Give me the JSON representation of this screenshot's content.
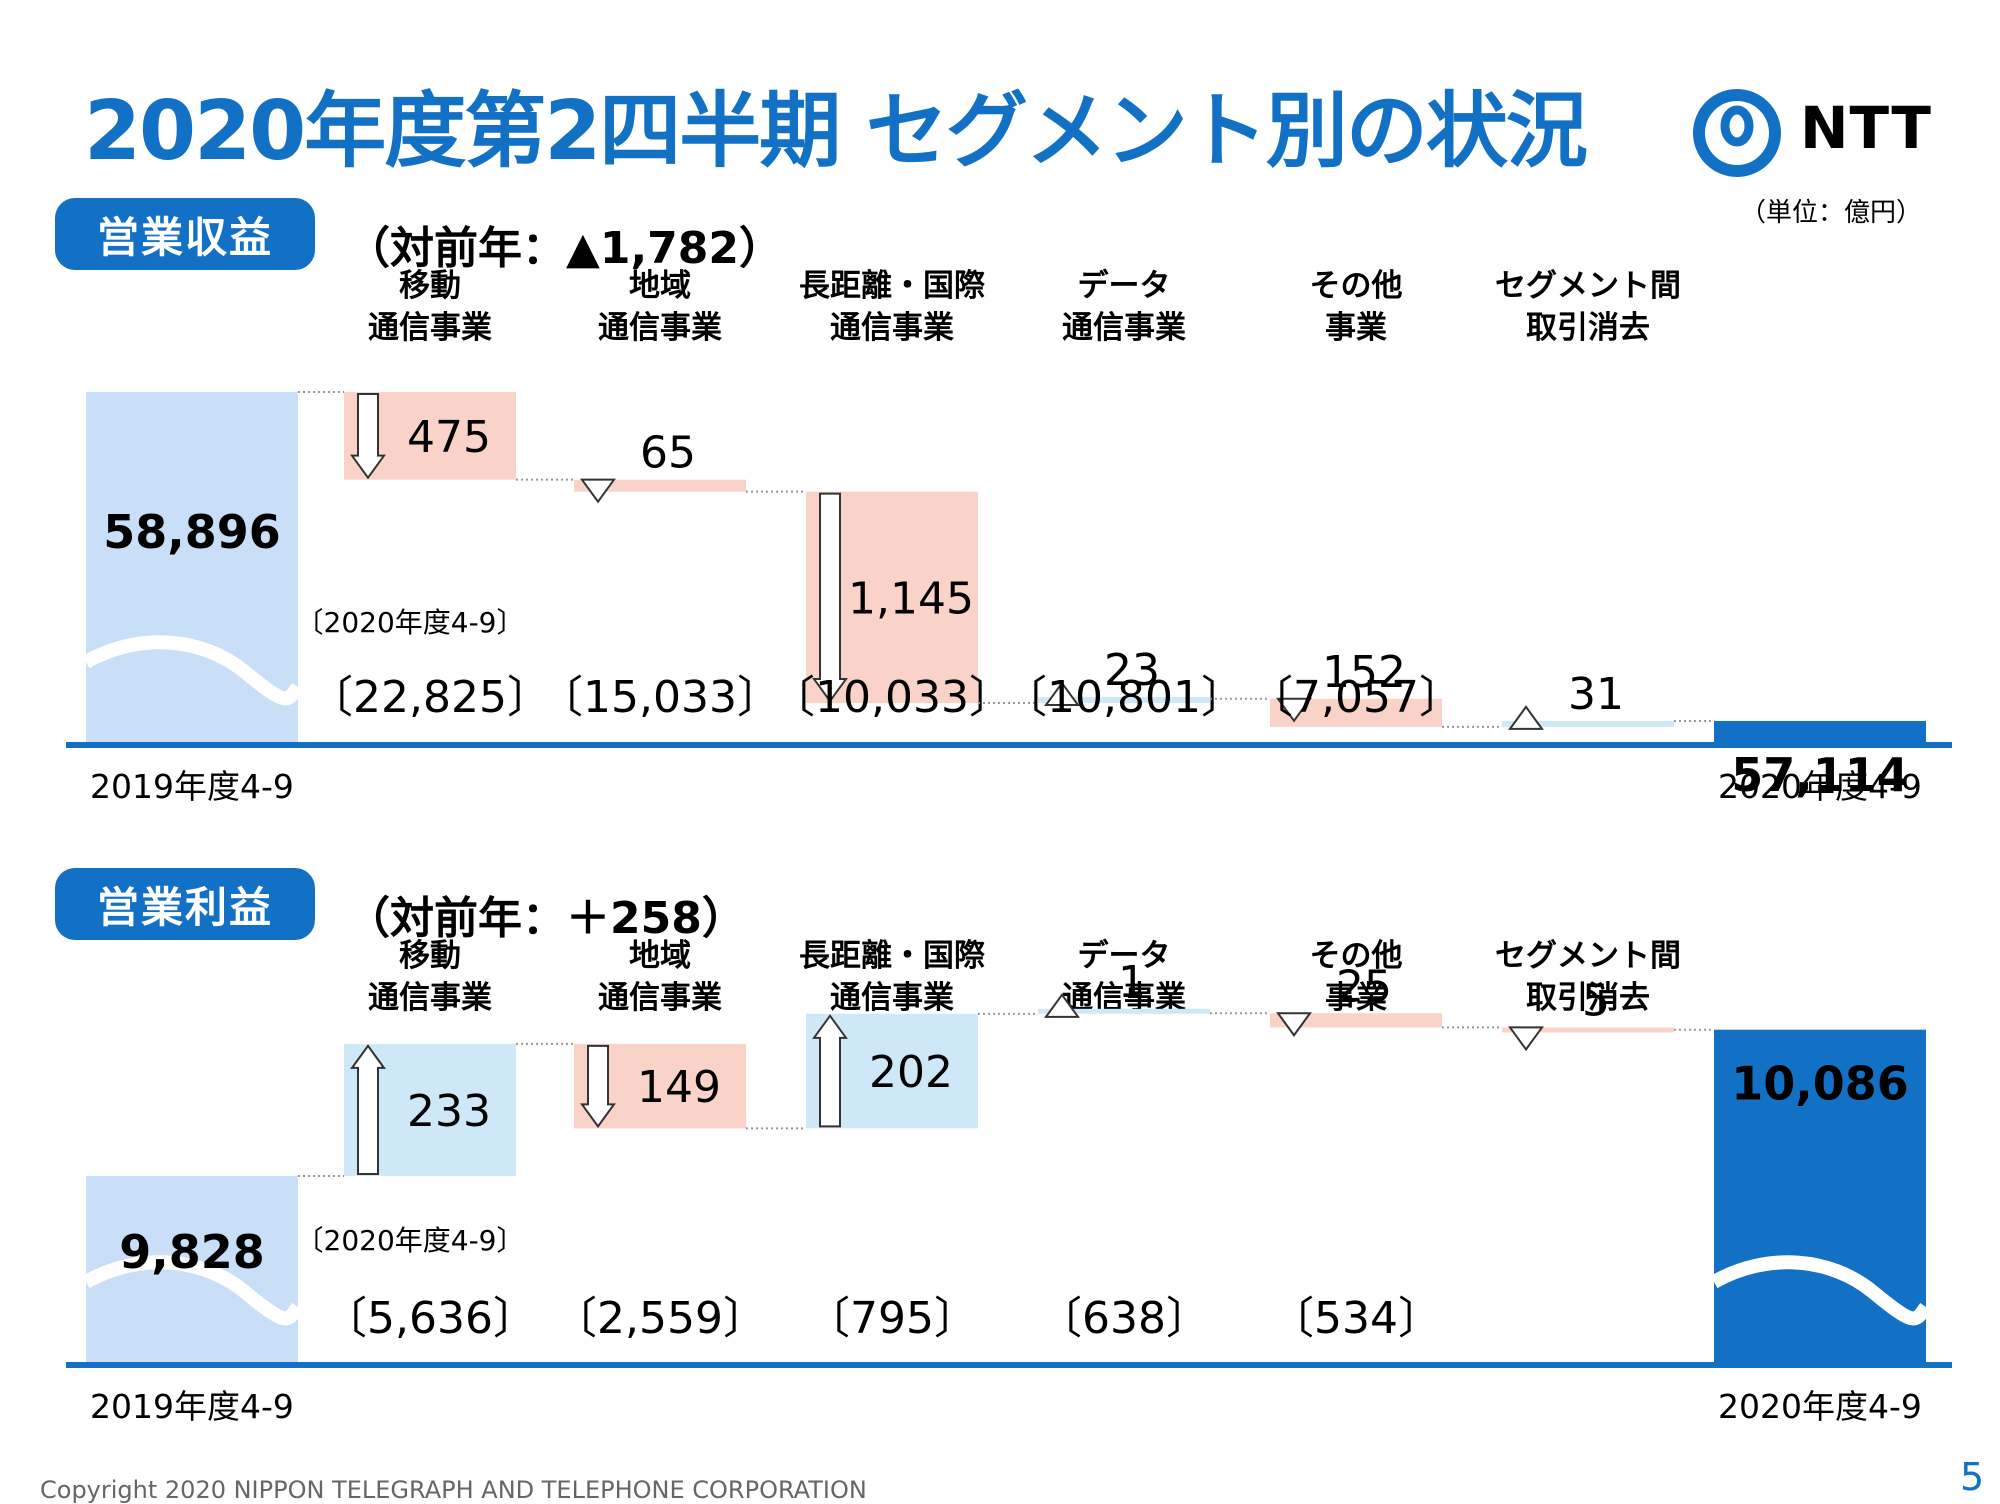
{
  "title": "2020年度第2四半期 セグメント別の状況",
  "logo_text": "NTT",
  "unit": "（単位：億円）",
  "categories": [
    "移動\n通信事業",
    "地域\n通信事業",
    "長距離・国際\n通信事業",
    "データ\n通信事業",
    "その他\n事業",
    "セグメント間\n取引消去"
  ],
  "period_sub_label": "〔2020年度4-9〕",
  "axis_left_label": "2019年度4-9",
  "axis_right_label": "2020年度4-9",
  "colors": {
    "accent": "#1271c4",
    "base_light": "#c9dff7",
    "increase": "#cfe8f8",
    "decrease": "#f9d3c8"
  },
  "chart_data": [
    {
      "type": "bar",
      "name": "営業収益",
      "change_label": "（対前年：▲1,782）",
      "start": {
        "label": "2019年度4-9",
        "value": 58896,
        "text": "58,896"
      },
      "end": {
        "label": "2020年度4-9",
        "value": 57114,
        "text": "57,114"
      },
      "steps": [
        {
          "delta": -475,
          "text": "475",
          "period_total": "〔22,825〕"
        },
        {
          "delta": -65,
          "text": "65",
          "period_total": "〔15,033〕"
        },
        {
          "delta": -1145,
          "text": "1,145",
          "period_total": "〔10,033〕"
        },
        {
          "delta": 23,
          "text": "23",
          "period_total": "〔10,801〕"
        },
        {
          "delta": -152,
          "text": "152",
          "period_total": "〔7,057〕"
        },
        {
          "delta": 31,
          "text": "31",
          "period_total": ""
        }
      ]
    },
    {
      "type": "bar",
      "name": "営業利益",
      "change_label": "（対前年：＋258）",
      "start": {
        "label": "2019年度4-9",
        "value": 9828,
        "text": "9,828"
      },
      "end": {
        "label": "2020年度4-9",
        "value": 10086,
        "text": "10,086"
      },
      "steps": [
        {
          "delta": 233,
          "text": "233",
          "period_total": "〔5,636〕"
        },
        {
          "delta": -149,
          "text": "149",
          "period_total": "〔2,559〕"
        },
        {
          "delta": 202,
          "text": "202",
          "period_total": "〔795〕"
        },
        {
          "delta": 1,
          "text": "1",
          "period_total": "〔638〕"
        },
        {
          "delta": -25,
          "text": "25",
          "period_total": "〔534〕"
        },
        {
          "delta": -5,
          "text": "5",
          "period_total": ""
        }
      ]
    }
  ],
  "footer": "Copyright 2020 NIPPON TELEGRAPH AND TELEPHONE CORPORATION",
  "page_number": "5"
}
